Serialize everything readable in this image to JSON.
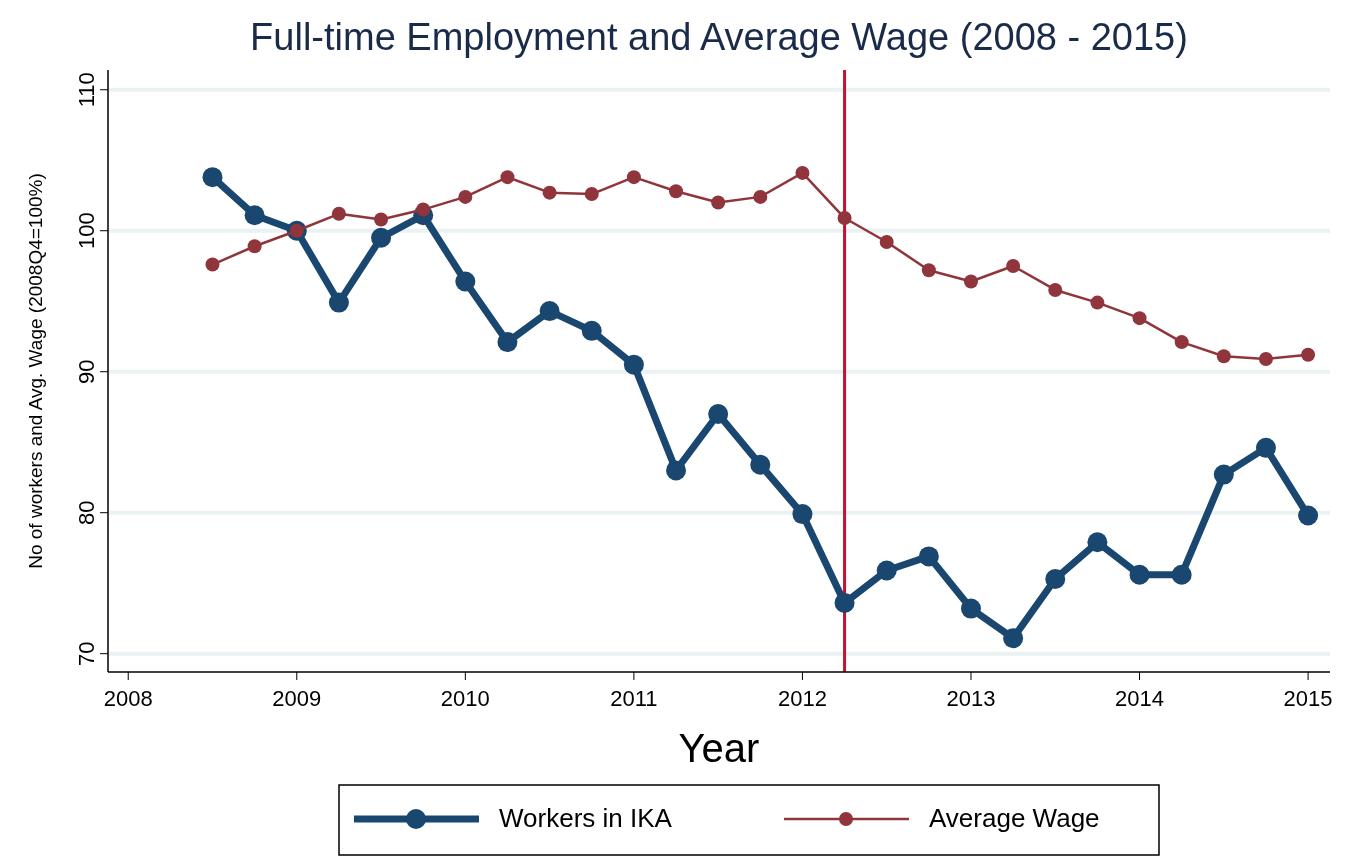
{
  "chart_data": {
    "type": "line",
    "title": "Full-time Employment and Average Wage (2008 - 2015)",
    "xlabel": "Year",
    "ylabel": "No of workers and Avg. Wage (2008Q4=100%)",
    "x": [
      2008.5,
      2008.75,
      2009,
      2009.25,
      2009.5,
      2009.75,
      2010,
      2010.25,
      2010.5,
      2010.75,
      2011,
      2011.25,
      2011.5,
      2011.75,
      2012,
      2012.25,
      2012.5,
      2012.75,
      2013,
      2013.25,
      2013.5,
      2013.75,
      2014,
      2014.25,
      2014.5,
      2014.75,
      2015
    ],
    "series": [
      {
        "name": "Workers in IKA",
        "color": "#1a476f",
        "values": [
          103.8,
          101.1,
          100,
          94.9,
          99.5,
          101.1,
          96.4,
          92.1,
          94.3,
          92.9,
          90.5,
          83.0,
          87.0,
          83.4,
          79.9,
          73.6,
          75.9,
          76.9,
          73.2,
          71.1,
          75.3,
          77.9,
          75.6,
          75.6,
          82.7,
          84.6,
          79.8
        ]
      },
      {
        "name": "Average Wage",
        "color": "#90353b",
        "values": [
          97.6,
          98.9,
          100,
          101.2,
          100.8,
          101.5,
          102.4,
          103.8,
          102.7,
          102.6,
          103.8,
          102.8,
          102.0,
          102.4,
          104.1,
          100.9,
          99.2,
          97.2,
          96.4,
          97.5,
          95.8,
          94.9,
          93.8,
          92.1,
          91.1,
          90.9,
          91.2
        ]
      }
    ],
    "xlim": [
      2007.88,
      2015.13
    ],
    "xticks": [
      2008,
      2009,
      2010,
      2011,
      2012,
      2013,
      2014,
      2015
    ],
    "ylim": [
      68.7,
      111.4
    ],
    "yticks": [
      70,
      80,
      90,
      100,
      110
    ],
    "ref_lines": [
      {
        "axis": "x",
        "value": 2012.25,
        "color": "#c8102e"
      }
    ],
    "grid": "y",
    "legend": "bottom",
    "marker": "circle",
    "line_style": "solid"
  }
}
